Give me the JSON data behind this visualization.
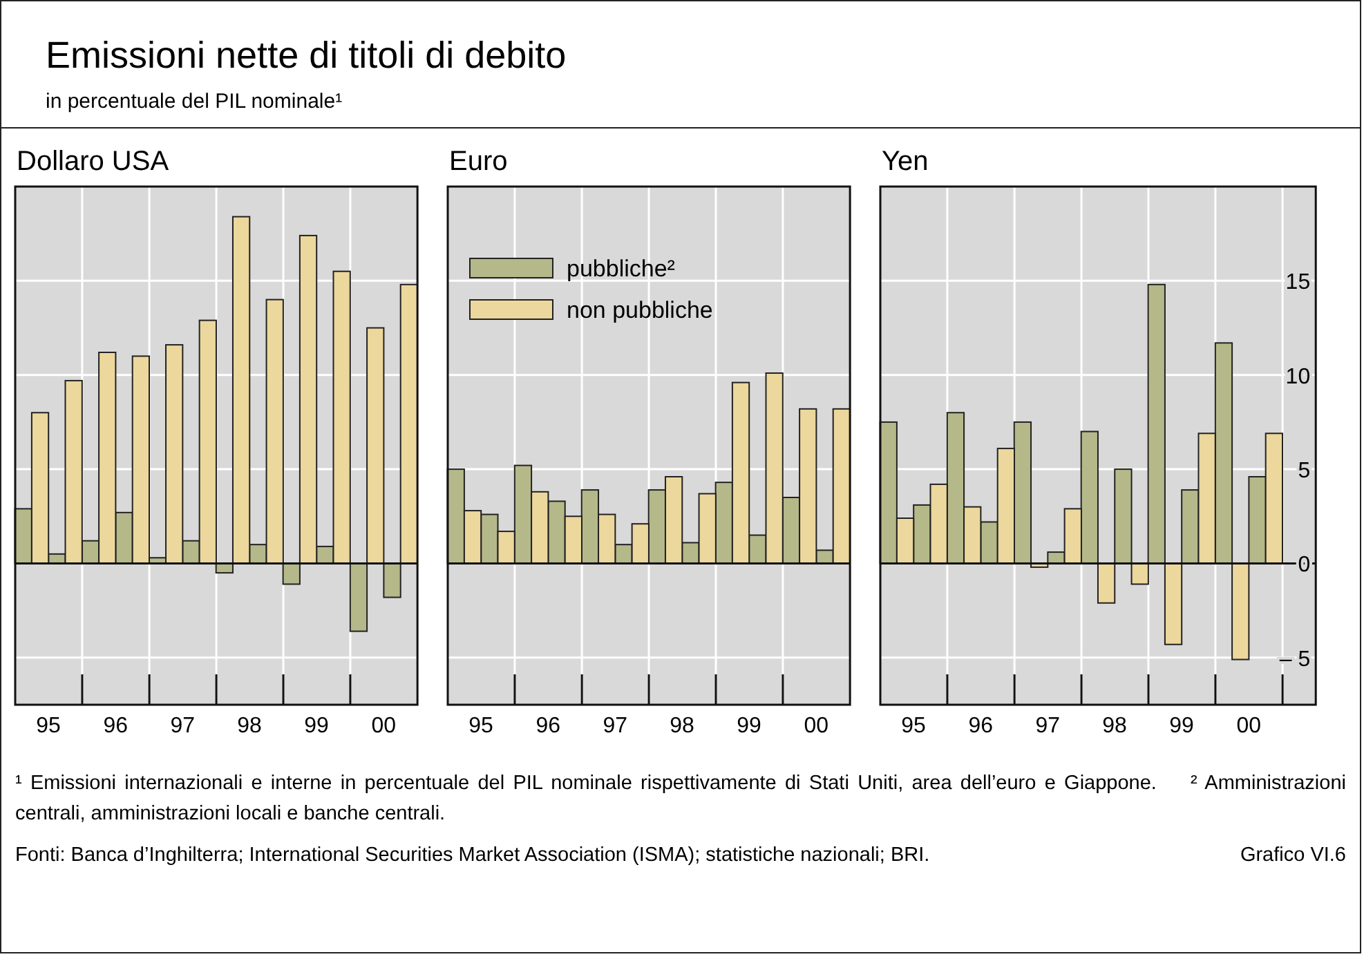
{
  "chart_data": [
    {
      "type": "other",
      "title": "Emissioni nette di titoli di debito",
      "subtitle": "in percentuale del PIL nominale¹",
      "annotations": [
        "¹ Emissioni internazionali e interne in percentuale del PIL nominale rispettivamente di Stati Uniti, area dell’euro e Giappone.",
        "² Amministrazioni centrali, amministrazioni locali e banche centrali.",
        "Fonti: Banca d’Inghilterra; International Securities Market Association (ISMA); statistiche nazionali; BRI.",
        "Grafico VI.6"
      ]
    },
    {
      "type": "bar",
      "title": "Dollaro USA",
      "x": [
        "1995-04-01",
        "1995-10-01",
        "1996-04-01",
        "1996-10-01",
        "1997-04-01",
        "1997-10-01",
        "1998-04-01",
        "1998-10-01",
        "1999-04-01",
        "1999-10-01",
        "2000-04-01",
        "2000-10-01"
      ],
      "xlim": [
        "1995-01-01",
        "2001-01-01"
      ],
      "xticks": [
        {
          "value": "1995-07-01",
          "label": "95"
        },
        {
          "value": "1996-07-01",
          "label": "96"
        },
        {
          "value": "1997-07-01",
          "label": "97"
        },
        {
          "value": "1998-07-01",
          "label": "98"
        },
        {
          "value": "1999-07-01",
          "label": "99"
        },
        {
          "value": "2000-07-01",
          "label": "00"
        },
        {
          "value": "1996-01-01",
          "label": null
        },
        {
          "value": "1997-01-01",
          "label": null
        },
        {
          "value": "1998-01-01",
          "label": null
        },
        {
          "value": "1999-01-01",
          "label": null
        },
        {
          "value": "2000-01-01",
          "label": null
        }
      ],
      "ylim": [
        -7.5,
        20
      ],
      "yticks": [
        -5,
        0,
        5,
        10,
        15
      ],
      "grid": true,
      "tick_labels": "x",
      "legend": false,
      "series": [
        {
          "color": "#b5b98a",
          "values": [
            2.9,
            0.5,
            1.2,
            2.7,
            0.3,
            1.2,
            -0.5,
            1.0,
            -1.1,
            0.9,
            -3.6,
            -1.8
          ]
        },
        {
          "color": "#ecd79d",
          "values": [
            8.0,
            9.7,
            11.2,
            11.0,
            11.6,
            12.9,
            18.4,
            14.0,
            17.4,
            15.5,
            12.5,
            14.8
          ]
        }
      ]
    },
    {
      "type": "bar",
      "title": "Euro",
      "x": [
        "1995-04-01",
        "1995-10-01",
        "1996-04-01",
        "1996-10-01",
        "1997-04-01",
        "1997-10-01",
        "1998-04-01",
        "1998-10-01",
        "1999-04-01",
        "1999-10-01",
        "2000-04-01",
        "2000-10-01"
      ],
      "xlim": [
        "1995-01-01",
        "2001-01-01"
      ],
      "xticks": [
        {
          "value": "1995-07-01",
          "label": "95"
        },
        {
          "value": "1996-07-01",
          "label": "96"
        },
        {
          "value": "1997-07-01",
          "label": "97"
        },
        {
          "value": "1998-07-01",
          "label": "98"
        },
        {
          "value": "1999-07-01",
          "label": "99"
        },
        {
          "value": "2000-07-01",
          "label": "00"
        },
        {
          "value": "1996-01-01",
          "label": null
        },
        {
          "value": "1997-01-01",
          "label": null
        },
        {
          "value": "1998-01-01",
          "label": null
        },
        {
          "value": "1999-01-01",
          "label": null
        },
        {
          "value": "2000-01-01",
          "label": null
        }
      ],
      "ylim": [
        -7.5,
        20
      ],
      "yticks": [
        -5,
        0,
        5,
        10,
        15
      ],
      "grid": true,
      "tick_labels": "x",
      "legend": "top left",
      "series": [
        {
          "name": "pubbliche²",
          "color": "#b5b98a",
          "values": [
            5.0,
            2.6,
            5.2,
            3.3,
            3.9,
            1.0,
            3.9,
            1.1,
            4.3,
            1.5,
            3.5,
            0.7
          ]
        },
        {
          "name": "non pubbliche",
          "color": "#ecd79d",
          "values": [
            2.8,
            1.7,
            3.8,
            2.5,
            2.6,
            2.1,
            4.6,
            3.7,
            9.6,
            10.1,
            8.2,
            8.2
          ]
        }
      ]
    },
    {
      "type": "bar",
      "title": "Yen",
      "x": [
        "1995-04-01",
        "1995-10-01",
        "1996-04-01",
        "1996-10-01",
        "1997-04-01",
        "1997-10-01",
        "1998-04-01",
        "1998-10-01",
        "1999-04-01",
        "1999-10-01",
        "2000-04-01",
        "2000-10-01"
      ],
      "xlim": [
        "1995-01-01",
        "2001-07-01"
      ],
      "xticks": [
        {
          "value": "1995-07-01",
          "label": "95"
        },
        {
          "value": "1996-07-01",
          "label": "96"
        },
        {
          "value": "1997-07-01",
          "label": "97"
        },
        {
          "value": "1998-07-01",
          "label": "98"
        },
        {
          "value": "1999-07-01",
          "label": "99"
        },
        {
          "value": "2000-07-01",
          "label": "00"
        },
        {
          "value": "1996-01-01",
          "label": null
        },
        {
          "value": "1997-01-01",
          "label": null
        },
        {
          "value": "1998-01-01",
          "label": null
        },
        {
          "value": "1999-01-01",
          "label": null
        },
        {
          "value": "2000-01-01",
          "label": null
        },
        {
          "value": "2001-01-01",
          "label": null
        }
      ],
      "ylim": [
        -7.5,
        20
      ],
      "yticks": [
        {
          "value": -5,
          "label": "– 5"
        },
        0,
        5,
        10,
        15
      ],
      "grid": true,
      "legend": false,
      "series": [
        {
          "color": "#b5b98a",
          "values": [
            7.5,
            3.1,
            8.0,
            2.2,
            7.5,
            0.6,
            7.0,
            5.0,
            14.8,
            3.9,
            11.7,
            4.6
          ]
        },
        {
          "color": "#ecd79d",
          "values": [
            2.4,
            4.2,
            3.0,
            6.1,
            -0.2,
            2.9,
            -2.1,
            -1.1,
            -4.3,
            6.9,
            -5.1,
            6.9
          ]
        }
      ]
    }
  ]
}
